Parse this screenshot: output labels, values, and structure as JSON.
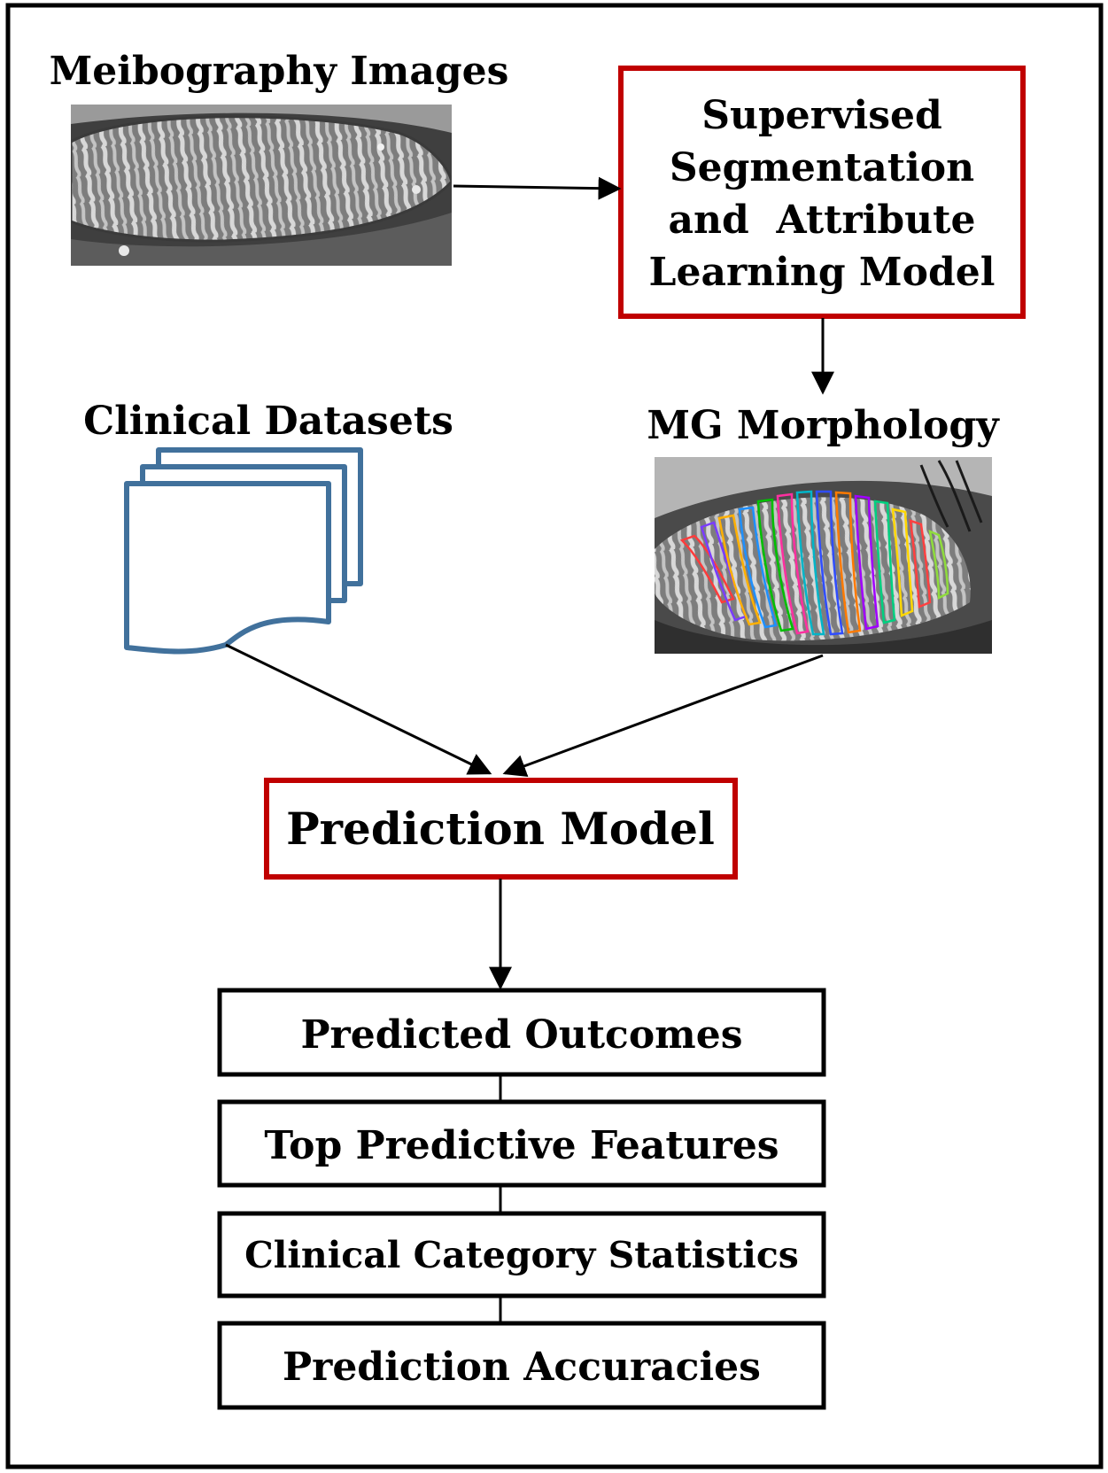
{
  "inputs": {
    "meibography_label": "Meibography Images",
    "clinical_label": "Clinical Datasets",
    "morphology_label": "MG Morphology"
  },
  "models": {
    "segmentation_lines": [
      "Supervised",
      "Segmentation",
      "and  Attribute",
      "Learning Model"
    ],
    "prediction_label": "Prediction Model"
  },
  "outputs": [
    "Predicted Outcomes",
    "Top Predictive Features",
    "Clinical Category Statistics",
    "Prediction Accuracies"
  ],
  "colors": {
    "model_border": "#c00000",
    "document_stroke": "#41719c",
    "arrow": "#000000",
    "frame": "#000000"
  }
}
